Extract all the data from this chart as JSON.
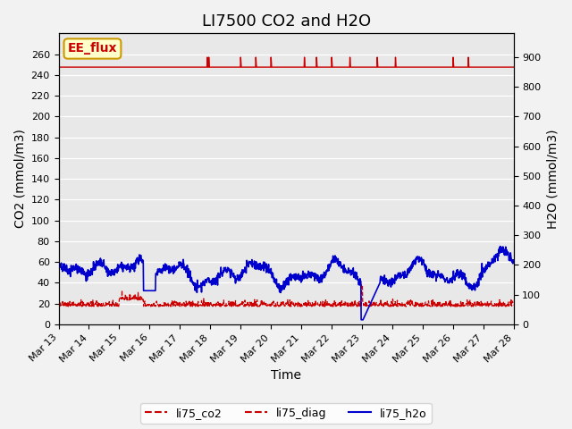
{
  "title": "LI7500 CO2 and H2O",
  "xlabel": "Time",
  "ylabel_left": "CO2 (mmol/m3)",
  "ylabel_right": "H2O (mmol/m3)",
  "annotation_text": "EE_flux",
  "annotation_color": "#cc0000",
  "annotation_bg": "#ffffcc",
  "annotation_border": "#cc9900",
  "xlim": [
    0,
    15
  ],
  "ylim_left": [
    0,
    280
  ],
  "ylim_right": [
    0,
    980
  ],
  "xtick_labels": [
    "Mar 13",
    "Mar 14",
    "Mar 15",
    "Mar 16",
    "Mar 17",
    "Mar 18",
    "Mar 19",
    "Mar 20",
    "Mar 21",
    "Mar 22",
    "Mar 23",
    "Mar 24",
    "Mar 25",
    "Mar 26",
    "Mar 27",
    "Mar 28"
  ],
  "yticks_left": [
    0,
    20,
    40,
    60,
    80,
    100,
    120,
    140,
    160,
    180,
    200,
    220,
    240,
    260
  ],
  "yticks_right": [
    0,
    100,
    200,
    300,
    400,
    500,
    600,
    700,
    800,
    900
  ],
  "legend_labels": [
    "li75_co2",
    "li75_diag",
    "li75_h2o"
  ],
  "legend_colors": [
    "#cc0000",
    "#cc0000",
    "#0000cc"
  ],
  "legend_linestyles": [
    "--",
    "--",
    "-"
  ],
  "background_color": "#e8e8e8",
  "grid_color": "#ffffff",
  "title_fontsize": 13,
  "axis_fontsize": 10,
  "tick_fontsize": 8
}
